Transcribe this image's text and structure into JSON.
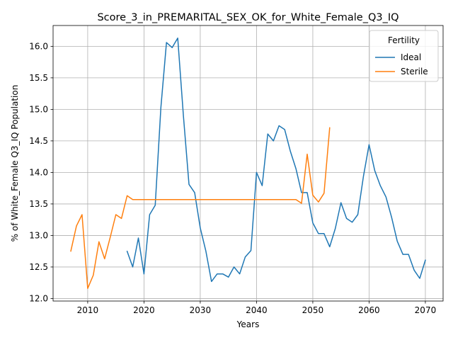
{
  "chart_data": {
    "type": "line",
    "title": "Score_3_in_PREMARITAL_SEX_OK_for_White_Female_Q3_IQ",
    "xlabel": "Years",
    "ylabel": "% of White_Female Q3_IQ Population",
    "xlim": [
      2003.85,
      2073.15
    ],
    "ylim": [
      11.96,
      16.33
    ],
    "xticks": [
      2010,
      2020,
      2030,
      2040,
      2050,
      2060,
      2070
    ],
    "yticks": [
      12.0,
      12.5,
      13.0,
      13.5,
      14.0,
      14.5,
      15.0,
      15.5,
      16.0
    ],
    "ytick_labels": [
      "12.0",
      "12.5",
      "13.0",
      "13.5",
      "14.0",
      "14.5",
      "15.0",
      "15.5",
      "16.0"
    ],
    "grid": true,
    "legend": {
      "title": "Fertility",
      "position": "upper-right"
    },
    "series": [
      {
        "name": "Ideal",
        "color": "#1f77b4",
        "x": [
          2017,
          2018,
          2019,
          2020,
          2021,
          2022,
          2023,
          2024,
          2025,
          2026,
          2027,
          2028,
          2029,
          2030,
          2031,
          2032,
          2033,
          2034,
          2035,
          2036,
          2037,
          2038,
          2039,
          2040,
          2041,
          2042,
          2043,
          2044,
          2045,
          2046,
          2047,
          2048,
          2049,
          2050,
          2051,
          2052,
          2053,
          2054,
          2055,
          2056,
          2057,
          2058,
          2059,
          2060,
          2061,
          2062,
          2063,
          2064,
          2065,
          2066,
          2067,
          2068,
          2069,
          2070
        ],
        "y": [
          12.75,
          12.5,
          12.96,
          12.39,
          13.33,
          13.48,
          15.03,
          16.06,
          15.98,
          16.13,
          14.9,
          13.81,
          13.68,
          13.12,
          12.75,
          12.27,
          12.39,
          12.39,
          12.34,
          12.5,
          12.39,
          12.66,
          12.76,
          14.0,
          13.79,
          14.61,
          14.5,
          14.74,
          14.68,
          14.34,
          14.06,
          13.68,
          13.68,
          13.2,
          13.03,
          13.03,
          12.82,
          13.11,
          13.52,
          13.27,
          13.21,
          13.33,
          13.94,
          14.44,
          14.03,
          13.79,
          13.61,
          13.29,
          12.91,
          12.7,
          12.7,
          12.45,
          12.32,
          12.61
        ]
      },
      {
        "name": "Sterile",
        "color": "#ff7f0e",
        "x": [
          2007,
          2008,
          2009,
          2010,
          2011,
          2012,
          2013,
          2014,
          2015,
          2016,
          2017,
          2018,
          2019,
          2020,
          2021,
          2022,
          2023,
          2024,
          2025,
          2026,
          2027,
          2028,
          2029,
          2030,
          2031,
          2032,
          2033,
          2034,
          2035,
          2036,
          2037,
          2038,
          2039,
          2040,
          2041,
          2042,
          2043,
          2044,
          2045,
          2046,
          2047,
          2048,
          2049,
          2050,
          2051,
          2052,
          2053
        ],
        "y": [
          12.75,
          13.15,
          13.33,
          12.16,
          12.37,
          12.9,
          12.63,
          12.97,
          13.33,
          13.27,
          13.63,
          13.57,
          13.57,
          13.57,
          13.57,
          13.57,
          13.57,
          13.57,
          13.57,
          13.57,
          13.57,
          13.57,
          13.57,
          13.57,
          13.57,
          13.57,
          13.57,
          13.57,
          13.57,
          13.57,
          13.57,
          13.57,
          13.57,
          13.57,
          13.57,
          13.57,
          13.57,
          13.57,
          13.57,
          13.57,
          13.57,
          13.51,
          14.29,
          13.64,
          13.53,
          13.67,
          14.71
        ]
      }
    ]
  }
}
